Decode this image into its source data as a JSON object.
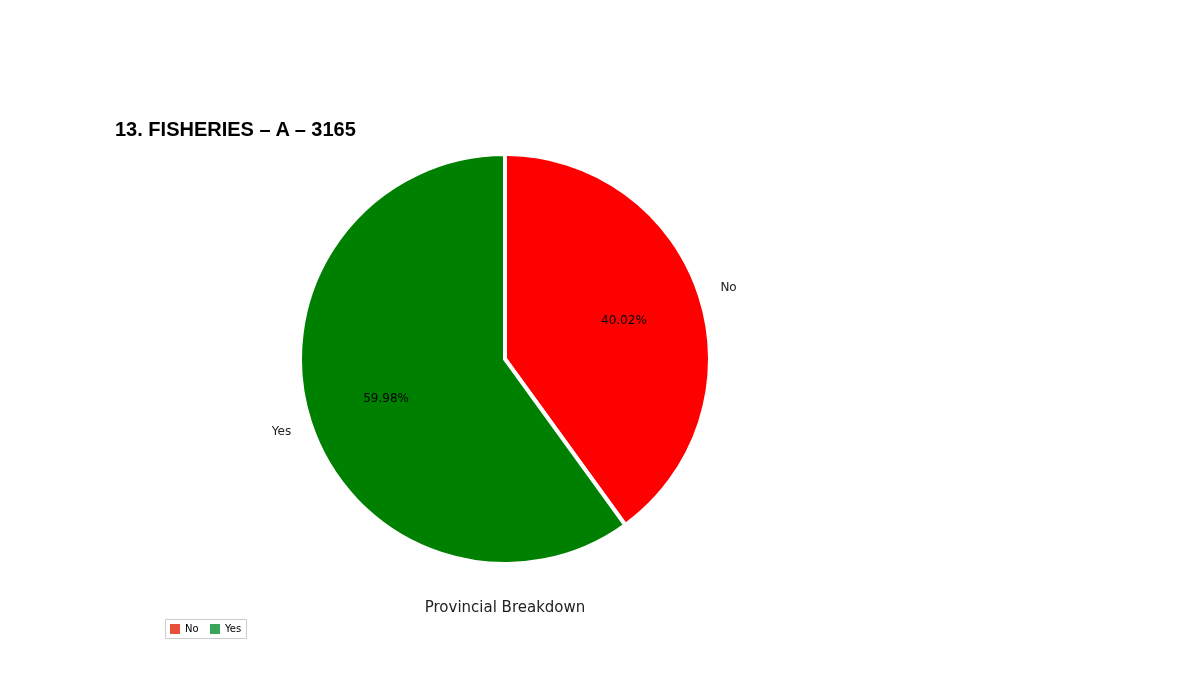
{
  "chart_data": [
    {
      "type": "pie",
      "title": "13.     FISHERIES – A – 3165",
      "categories": [
        "No",
        "Yes"
      ],
      "values": [
        40.02,
        59.98
      ],
      "colors": [
        "#ff0000",
        "#008000"
      ],
      "value_labels": [
        "40.02%",
        "59.98%"
      ]
    },
    {
      "type": "other",
      "title": "Provincial Breakdown",
      "legend": "top left",
      "series": [
        {
          "name": "No",
          "color": "#e8503a"
        },
        {
          "name": "Yes",
          "color": "#3ba55c"
        }
      ]
    }
  ]
}
